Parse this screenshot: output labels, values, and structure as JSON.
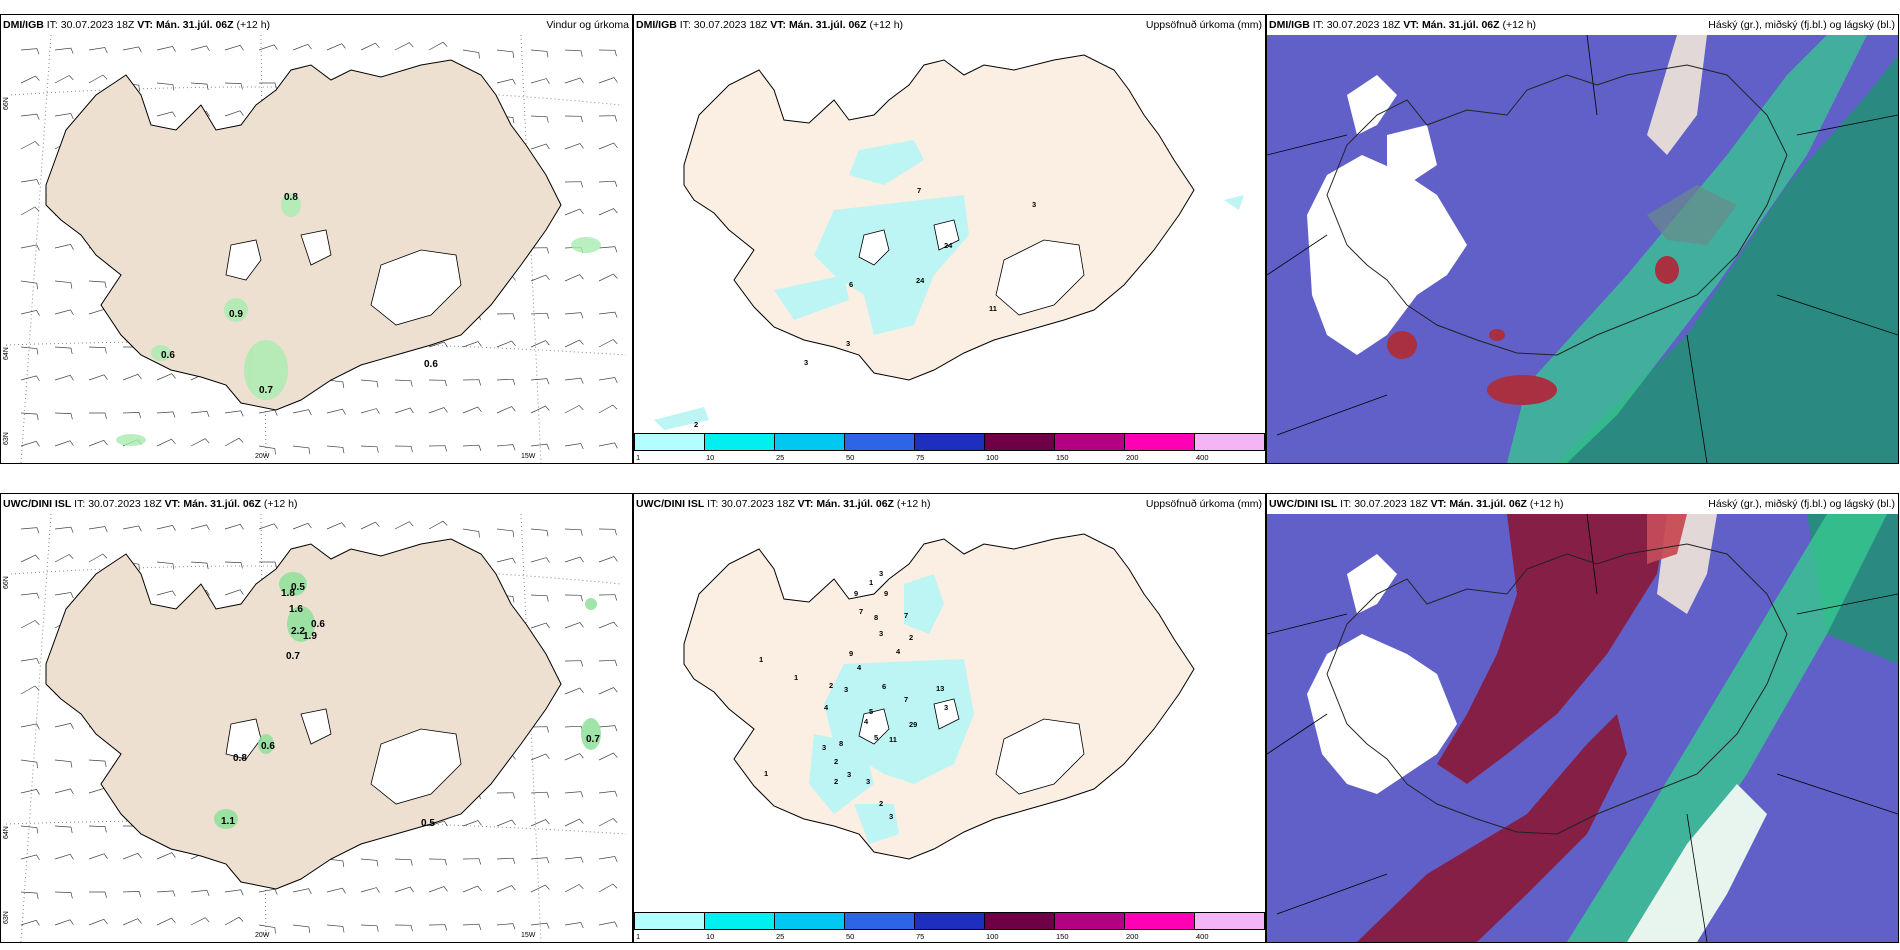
{
  "panels": {
    "top_wind": {
      "model": "DMI/IGB",
      "it_label": "IT:",
      "it_value": "30.07.2023 18Z",
      "vt_label": "VT:",
      "vt_value": "Mán. 31.júl. 06Z",
      "lead": "(+12 h)",
      "title": "Vindur og úrkoma"
    },
    "top_precip": {
      "model": "DMI/IGB",
      "it_label": "IT:",
      "it_value": "30.07.2023 18Z",
      "vt_label": "VT:",
      "vt_value": "Mán. 31.júl. 06Z",
      "lead": "(+12 h)",
      "title": "Uppsöfnuð úrkoma (mm)"
    },
    "top_cloud": {
      "model": "DMI/IGB",
      "it_label": "IT:",
      "it_value": "30.07.2023 18Z",
      "vt_label": "VT:",
      "vt_value": "Mán. 31.júl. 06Z",
      "lead": "(+12 h)",
      "title": "Háský (gr.), miðský (fj.bl.) og lágský (bl.)"
    },
    "bot_wind": {
      "model": "UWC/DINI ISL",
      "it_label": "IT:",
      "it_value": "30.07.2023 18Z",
      "vt_label": "VT:",
      "vt_value": "Mán. 31.júl. 06Z",
      "lead": "(+12 h)",
      "title": ""
    },
    "bot_precip": {
      "model": "UWC/DINI ISL",
      "it_label": "IT:",
      "it_value": "30.07.2023 18Z",
      "vt_label": "VT:",
      "vt_value": "Mán. 31.júl. 06Z",
      "lead": "(+12 h)",
      "title": "Uppsöfnuð úrkoma (mm)"
    },
    "bot_cloud": {
      "model": "UWC/DINI ISL",
      "it_label": "IT:",
      "it_value": "30.07.2023 18Z",
      "vt_label": "VT:",
      "vt_value": "Mán. 31.júl. 06Z",
      "lead": "(+12 h)",
      "title": "Háský (gr.), miðský (fj.bl.) og lágský (bl.)"
    }
  },
  "axes": {
    "lat66": "66N",
    "lat64": "64N",
    "lat63": "63N",
    "lon20": "20W",
    "lon15": "15W"
  },
  "colorbar": {
    "labels": [
      "1",
      "10",
      "25",
      "50",
      "75",
      "100",
      "150",
      "200",
      "400"
    ],
    "colors": [
      "#b3ffff",
      "#00f0f0",
      "#00c8f0",
      "#2e64e6",
      "#1e2ebe",
      "#6e0046",
      "#b40082",
      "#ff00b4",
      "#f5b4f5"
    ]
  },
  "colors": {
    "land": "#f3e6d8",
    "landWind": "#ede0d0",
    "cloudBg": "#6060c8",
    "teal": "#2a8a82",
    "green": "#38c890",
    "red": "#a83040",
    "precip": "#bdf5f5",
    "rainGreen": "#aaf0aa"
  },
  "values": {
    "top_wind": [
      "0.8",
      "0.9",
      "0.6",
      "0.7",
      "0.6"
    ],
    "top_precip": [
      "7",
      "3",
      "24",
      "24",
      "6",
      "11",
      "3",
      "3",
      "2"
    ],
    "bot_wind": [
      "0.5",
      "1.8",
      "1.6",
      "0.6",
      "2.2",
      "1.9",
      "0.7",
      "0.6",
      "0.8",
      "0.7",
      "1.1",
      "0.5"
    ],
    "bot_precip": [
      "3",
      "1",
      "9",
      "9",
      "7",
      "8",
      "7",
      "3",
      "2",
      "4",
      "1",
      "1",
      "9",
      "4",
      "2",
      "3",
      "6",
      "4",
      "5",
      "7",
      "13",
      "4",
      "3",
      "29",
      "11",
      "8",
      "5",
      "3",
      "2",
      "3",
      "3",
      "2",
      "3",
      "2",
      "1"
    ]
  }
}
